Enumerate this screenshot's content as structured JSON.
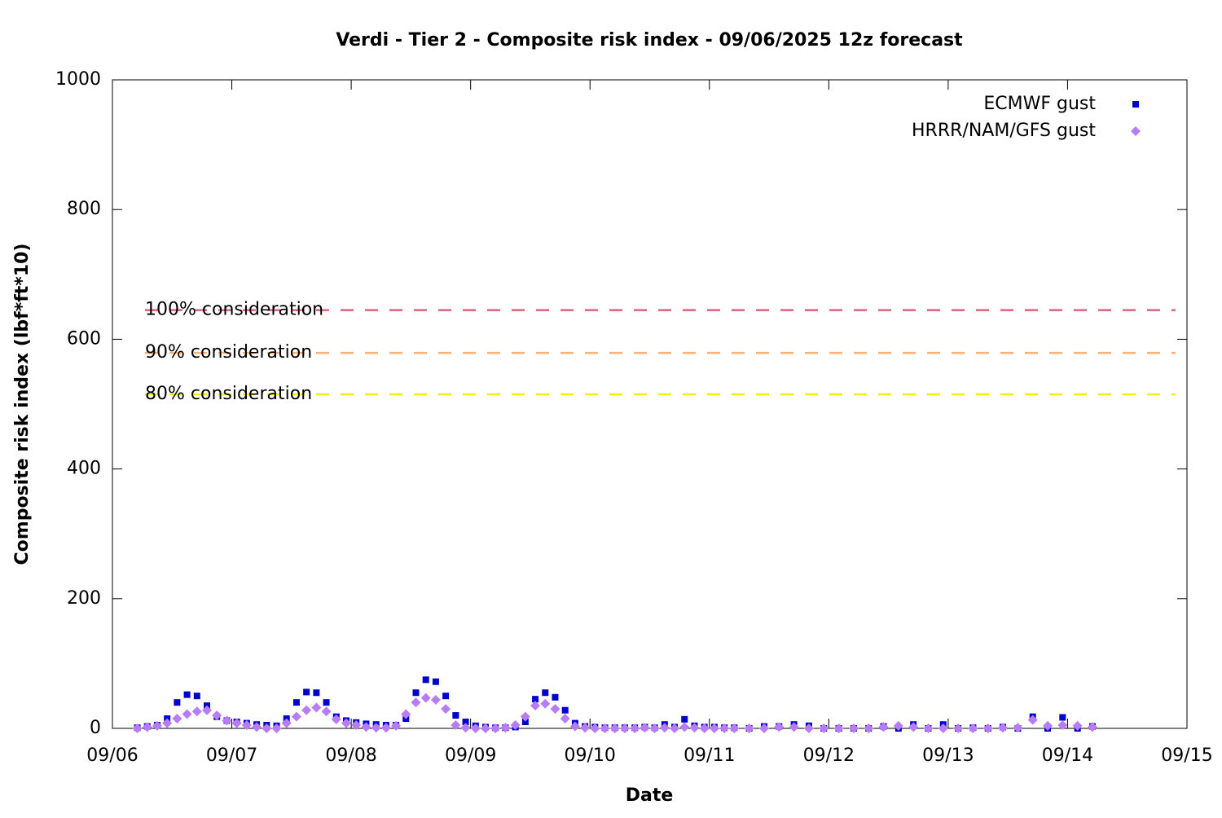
{
  "chart_data": {
    "type": "scatter",
    "title": "Verdi - Tier 2 - Composite risk index - 09/06/2025 12z forecast",
    "x_label": "Date",
    "y_label": "Composite risk index (lbf*ft*10)",
    "xlim": [
      0,
      216
    ],
    "xticks": [
      {
        "value": 0,
        "label": "09/06"
      },
      {
        "value": 24,
        "label": "09/07"
      },
      {
        "value": 48,
        "label": "09/08"
      },
      {
        "value": 72,
        "label": "09/09"
      },
      {
        "value": 96,
        "label": "09/10"
      },
      {
        "value": 120,
        "label": "09/11"
      },
      {
        "value": 144,
        "label": "09/12"
      },
      {
        "value": 168,
        "label": "09/13"
      },
      {
        "value": 192,
        "label": "09/14"
      },
      {
        "value": 216,
        "label": "09/15"
      }
    ],
    "ylim": [
      0,
      1000
    ],
    "yticks": [
      0,
      200,
      400,
      600,
      800,
      1000
    ],
    "legend": "top-right",
    "reference_lines": [
      {
        "label": "100% consideration",
        "value": 645,
        "color": "#e0607a"
      },
      {
        "label": "90% consideration",
        "value": 579,
        "color": "#f5b27a"
      },
      {
        "label": "80% consideration",
        "value": 515,
        "color": "#f0f000"
      }
    ],
    "x": [
      5,
      7,
      9,
      11,
      13,
      15,
      17,
      19,
      21,
      23,
      25,
      27,
      29,
      31,
      33,
      35,
      37,
      39,
      41,
      43,
      45,
      47,
      49,
      51,
      53,
      55,
      57,
      59,
      61,
      63,
      65,
      67,
      69,
      71,
      73,
      75,
      77,
      79,
      81,
      83,
      85,
      87,
      89,
      91,
      93,
      95,
      97,
      99,
      101,
      103,
      105,
      107,
      109,
      111,
      113,
      115,
      117,
      119,
      121,
      123,
      125,
      128,
      131,
      134,
      137,
      140,
      143,
      146,
      149,
      152,
      155,
      158,
      161,
      164,
      167,
      170,
      173,
      176,
      179,
      182,
      185,
      188,
      191,
      194,
      197
    ],
    "series": [
      {
        "name": "ECMWF gust",
        "color": "#0000cc",
        "marker": "square",
        "values": [
          1,
          3,
          5,
          15,
          40,
          52,
          50,
          35,
          18,
          12,
          10,
          8,
          6,
          5,
          4,
          15,
          40,
          56,
          55,
          40,
          18,
          12,
          9,
          7,
          6,
          5,
          5,
          15,
          55,
          75,
          72,
          50,
          20,
          10,
          4,
          2,
          1,
          1,
          2,
          10,
          45,
          55,
          48,
          28,
          8,
          3,
          2,
          1,
          1,
          1,
          1,
          2,
          1,
          6,
          2,
          14,
          4,
          2,
          2,
          1,
          1,
          0,
          3,
          3,
          6,
          4,
          0,
          0,
          0,
          0,
          3,
          0,
          6,
          0,
          6,
          0,
          1,
          0,
          2,
          0,
          18,
          0,
          17,
          0,
          3
        ]
      },
      {
        "name": "HRRR/NAM/GFS gust",
        "color": "#b87cf5",
        "marker": "diamond",
        "values": [
          0,
          2,
          4,
          8,
          15,
          22,
          26,
          28,
          20,
          12,
          8,
          5,
          2,
          0,
          0,
          8,
          18,
          28,
          32,
          26,
          14,
          8,
          5,
          2,
          1,
          1,
          4,
          22,
          40,
          47,
          44,
          30,
          5,
          1,
          0,
          0,
          0,
          1,
          5,
          18,
          35,
          38,
          30,
          15,
          3,
          1,
          0,
          0,
          0,
          0,
          0,
          1,
          0,
          1,
          0,
          2,
          1,
          0,
          0,
          0,
          0,
          0,
          0,
          2,
          2,
          0,
          0,
          0,
          0,
          0,
          2,
          4,
          2,
          0,
          0,
          0,
          0,
          0,
          1,
          1,
          13,
          4,
          5,
          4,
          2
        ]
      }
    ]
  }
}
